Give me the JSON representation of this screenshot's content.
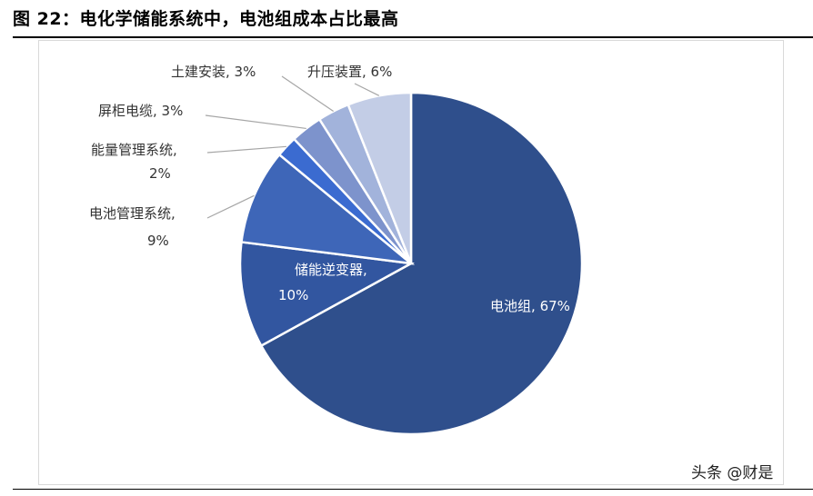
{
  "figure": {
    "title": "图  22：电化学储能系统中，电池组成本占比最高"
  },
  "watermark": "头条 @财是",
  "chart_data": {
    "type": "pie",
    "title": "",
    "slices": [
      {
        "label": "电池组",
        "value": 67,
        "color": "#2F4F8C",
        "display": "电池组, 67%"
      },
      {
        "label": "储能逆变器",
        "value": 10,
        "color": "#3256A0",
        "display": "储能逆变器, 10%"
      },
      {
        "label": "电池管理系统",
        "value": 9,
        "color": "#3E66B8",
        "display": "电池管理系统, 9%"
      },
      {
        "label": "能量管理系统",
        "value": 2,
        "color": "#3B6BD0",
        "display": "能量管理系统, 2%"
      },
      {
        "label": "屏柜电缆",
        "value": 3,
        "color": "#7D93CC",
        "display": "屏柜电缆, 3%"
      },
      {
        "label": "土建安装",
        "value": 3,
        "color": "#A2B3DB",
        "display": "土建安装, 3%"
      },
      {
        "label": "升压装置",
        "value": 6,
        "color": "#C3CDE6",
        "display": "升压装置, 6%"
      }
    ]
  }
}
